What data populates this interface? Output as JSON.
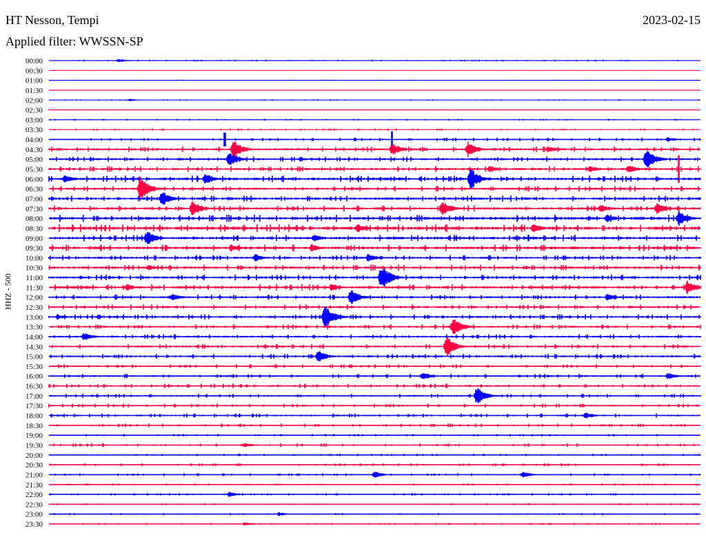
{
  "header": {
    "station": "HT Nesson, Tempi",
    "date": "2023-02-15",
    "filter": "Applied filter: WWSSN-SP"
  },
  "chart_data": {
    "type": "line",
    "title": "HT Nesson, Tempi",
    "ylabel": "HHZ - 500",
    "xlabel": "",
    "minutes_per_line": 30,
    "colors": {
      "full_hour": "#0000ff",
      "half_hour": "#ff0040"
    },
    "row_labels": [
      "00:00",
      "00:30",
      "01:00",
      "01:30",
      "02:00",
      "02:30",
      "03:00",
      "03:30",
      "04:00",
      "04:30",
      "05:00",
      "05:30",
      "06:00",
      "06:30",
      "07:00",
      "07:30",
      "08:00",
      "08:30",
      "09:00",
      "09:30",
      "10:00",
      "10:30",
      "11:00",
      "11:30",
      "12:00",
      "12:30",
      "13:00",
      "13:30",
      "14:00",
      "14:30",
      "15:00",
      "15:30",
      "16:00",
      "16:30",
      "17:00",
      "17:30",
      "18:00",
      "18:30",
      "19:00",
      "19:30",
      "20:00",
      "20:30",
      "21:00",
      "21:30",
      "22:00",
      "22:30",
      "23:00",
      "23:30"
    ],
    "noise_level": [
      0.5,
      0.2,
      0.3,
      0.2,
      0.4,
      0.3,
      0.5,
      0.6,
      0.9,
      1.4,
      1.3,
      1.4,
      1.6,
      1.4,
      1.5,
      1.5,
      1.8,
      1.9,
      1.6,
      1.7,
      1.3,
      1.5,
      1.4,
      1.6,
      1.3,
      1.3,
      1.3,
      1.2,
      1.2,
      1.2,
      1.2,
      1.0,
      1.1,
      1.1,
      1.0,
      1.0,
      1.0,
      0.9,
      0.6,
      0.9,
      0.6,
      0.7,
      0.7,
      0.5,
      0.6,
      0.5,
      0.5,
      0.5
    ],
    "events": [
      {
        "row": "00:00",
        "minute": 3.2,
        "amp": 3
      },
      {
        "row": "02:00",
        "minute": 3.7,
        "amp": 2
      },
      {
        "row": "04:00",
        "minute": 15.8,
        "amp": 12,
        "spike": true
      },
      {
        "row": "04:00",
        "minute": 8.1,
        "amp": 10,
        "spike": true
      },
      {
        "row": "04:00",
        "minute": 28.5,
        "amp": 4
      },
      {
        "row": "04:30",
        "minute": 8.5,
        "amp": 14
      },
      {
        "row": "04:30",
        "minute": 15.8,
        "amp": 10
      },
      {
        "row": "04:30",
        "minute": 19.3,
        "amp": 11
      },
      {
        "row": "04:30",
        "minute": 23.0,
        "amp": 5
      },
      {
        "row": "05:00",
        "minute": 8.3,
        "amp": 11
      },
      {
        "row": "05:00",
        "minute": 27.5,
        "amp": 16
      },
      {
        "row": "05:30",
        "minute": 29.0,
        "amp": 20,
        "spike": true
      },
      {
        "row": "05:30",
        "minute": 20.3,
        "amp": 5
      },
      {
        "row": "05:30",
        "minute": 24.9,
        "amp": 5
      },
      {
        "row": "05:30",
        "minute": 26.7,
        "amp": 6
      },
      {
        "row": "06:00",
        "minute": 0.7,
        "amp": 6
      },
      {
        "row": "06:00",
        "minute": 7.2,
        "amp": 9
      },
      {
        "row": "06:00",
        "minute": 19.4,
        "amp": 18
      },
      {
        "row": "06:30",
        "minute": 4.2,
        "amp": 20
      },
      {
        "row": "07:00",
        "minute": 5.2,
        "amp": 12
      },
      {
        "row": "07:30",
        "minute": 6.6,
        "amp": 12
      },
      {
        "row": "07:30",
        "minute": 18.1,
        "amp": 12
      },
      {
        "row": "07:30",
        "minute": 25.4,
        "amp": 6
      },
      {
        "row": "07:30",
        "minute": 28.0,
        "amp": 8
      },
      {
        "row": "08:00",
        "minute": 25.7,
        "amp": 6
      },
      {
        "row": "08:00",
        "minute": 29.0,
        "amp": 12
      },
      {
        "row": "08:30",
        "minute": 22.3,
        "amp": 6
      },
      {
        "row": "08:30",
        "minute": 14.2,
        "amp": 6
      },
      {
        "row": "09:00",
        "minute": 4.5,
        "amp": 12
      },
      {
        "row": "09:00",
        "minute": 12.2,
        "amp": 6
      },
      {
        "row": "09:30",
        "minute": 8.4,
        "amp": 6
      },
      {
        "row": "09:30",
        "minute": 12.1,
        "amp": 6
      },
      {
        "row": "10:00",
        "minute": 9.5,
        "amp": 6
      },
      {
        "row": "10:00",
        "minute": 14.7,
        "amp": 6
      },
      {
        "row": "10:30",
        "minute": 4.6,
        "amp": 4
      },
      {
        "row": "11:00",
        "minute": 15.3,
        "amp": 20
      },
      {
        "row": "11:30",
        "minute": 13.0,
        "amp": 6
      },
      {
        "row": "11:30",
        "minute": 29.4,
        "amp": 10
      },
      {
        "row": "11:30",
        "minute": 3.6,
        "amp": 5
      },
      {
        "row": "12:00",
        "minute": 13.9,
        "amp": 12
      },
      {
        "row": "12:00",
        "minute": 5.7,
        "amp": 5
      },
      {
        "row": "12:00",
        "minute": 25.7,
        "amp": 5
      },
      {
        "row": "13:00",
        "minute": 12.7,
        "amp": 18
      },
      {
        "row": "13:00",
        "minute": 0.4,
        "amp": 4
      },
      {
        "row": "13:30",
        "minute": 18.6,
        "amp": 14
      },
      {
        "row": "14:00",
        "minute": 1.6,
        "amp": 6
      },
      {
        "row": "14:30",
        "minute": 18.3,
        "amp": 16
      },
      {
        "row": "15:00",
        "minute": 12.4,
        "amp": 9
      },
      {
        "row": "16:00",
        "minute": 17.2,
        "amp": 6
      },
      {
        "row": "16:00",
        "minute": 28.5,
        "amp": 5
      },
      {
        "row": "17:00",
        "minute": 19.7,
        "amp": 14
      },
      {
        "row": "18:00",
        "minute": 24.7,
        "amp": 5
      },
      {
        "row": "19:30",
        "minute": 9.0,
        "amp": 4
      },
      {
        "row": "21:00",
        "minute": 15.0,
        "amp": 5
      },
      {
        "row": "21:00",
        "minute": 21.8,
        "amp": 5
      },
      {
        "row": "22:00",
        "minute": 8.3,
        "amp": 4
      },
      {
        "row": "23:00",
        "minute": 10.6,
        "amp": 3
      },
      {
        "row": "23:30",
        "minute": 9.0,
        "amp": 3
      }
    ]
  }
}
